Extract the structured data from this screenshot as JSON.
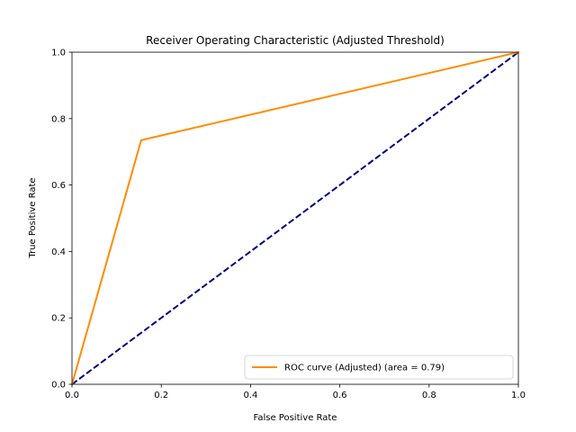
{
  "chart_data": {
    "type": "line",
    "title": "Receiver Operating Characteristic (Adjusted Threshold)",
    "xlabel": "False Positive Rate",
    "ylabel": "True Positive Rate",
    "xlim": [
      0.0,
      1.0
    ],
    "ylim": [
      0.0,
      1.0
    ],
    "xticks": [
      "0.0",
      "0.2",
      "0.4",
      "0.6",
      "0.8",
      "1.0"
    ],
    "yticks": [
      "0.0",
      "0.2",
      "0.4",
      "0.6",
      "0.8",
      "1.0"
    ],
    "grid": false,
    "legend_position": "lower-right",
    "series": [
      {
        "name": "ROC curve (Adjusted) (area = 0.79)",
        "color": "#ff8c00",
        "line_style": "solid",
        "x": [
          0.0,
          0.155,
          1.0
        ],
        "y": [
          0.0,
          0.735,
          1.0
        ]
      },
      {
        "color": "#000080",
        "line_style": "dashed",
        "x": [
          0.0,
          1.0
        ],
        "y": [
          0.0,
          1.0
        ]
      }
    ]
  }
}
